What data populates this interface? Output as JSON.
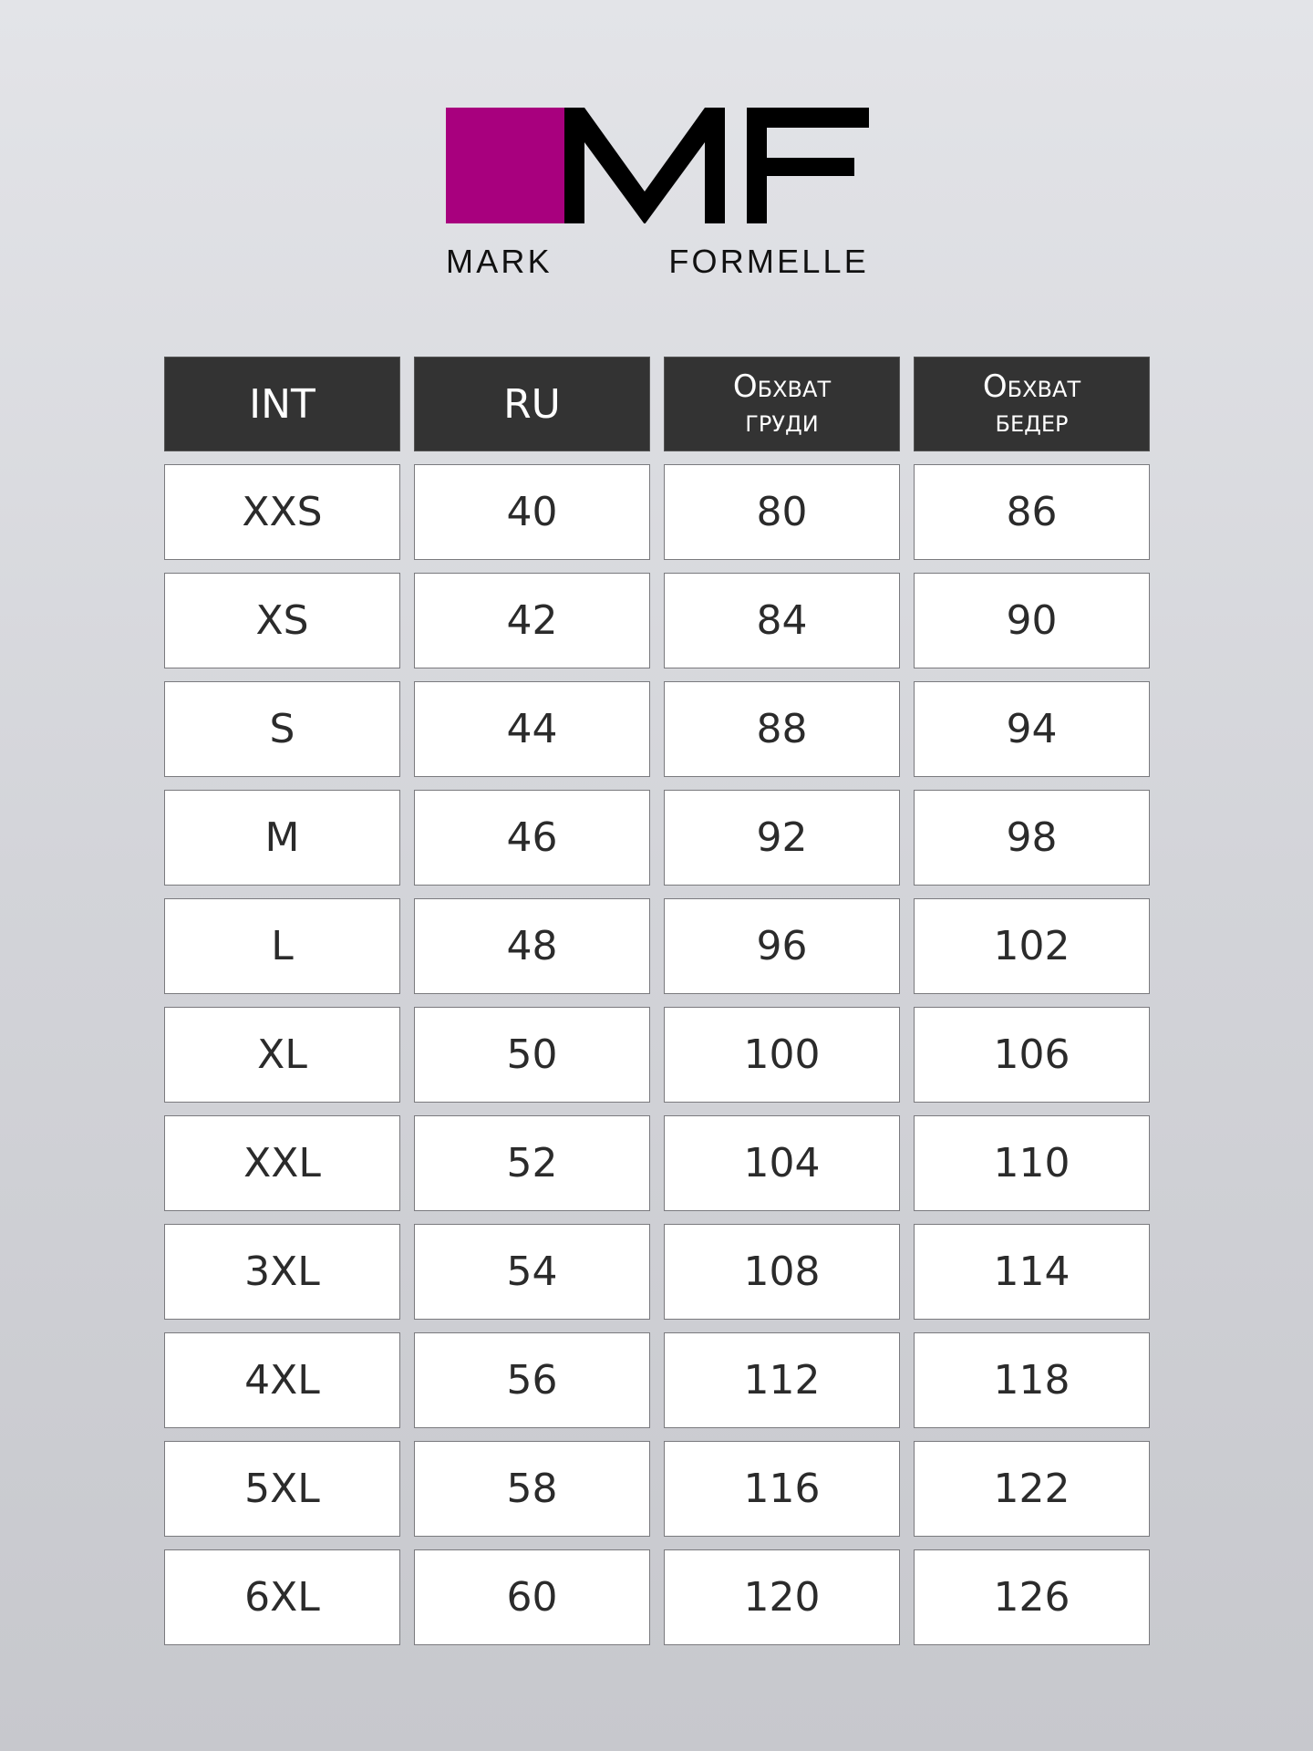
{
  "brand": {
    "logo_letters": "MF",
    "name": "MARK FORMELLE",
    "accent": "#a8007e"
  },
  "table": {
    "headers": [
      {
        "line1": "INT"
      },
      {
        "line1": "RU"
      },
      {
        "line1": "Обхват",
        "line2": "груди"
      },
      {
        "line1": "Обхват",
        "line2": "бедер"
      }
    ],
    "rows": [
      [
        "XXS",
        "40",
        "80",
        "86"
      ],
      [
        "XS",
        "42",
        "84",
        "90"
      ],
      [
        "S",
        "44",
        "88",
        "94"
      ],
      [
        "M",
        "46",
        "92",
        "98"
      ],
      [
        "L",
        "48",
        "96",
        "102"
      ],
      [
        "XL",
        "50",
        "100",
        "106"
      ],
      [
        "XXL",
        "52",
        "104",
        "110"
      ],
      [
        "3XL",
        "54",
        "108",
        "114"
      ],
      [
        "4XL",
        "56",
        "112",
        "118"
      ],
      [
        "5XL",
        "58",
        "116",
        "122"
      ],
      [
        "6XL",
        "60",
        "120",
        "126"
      ]
    ]
  }
}
